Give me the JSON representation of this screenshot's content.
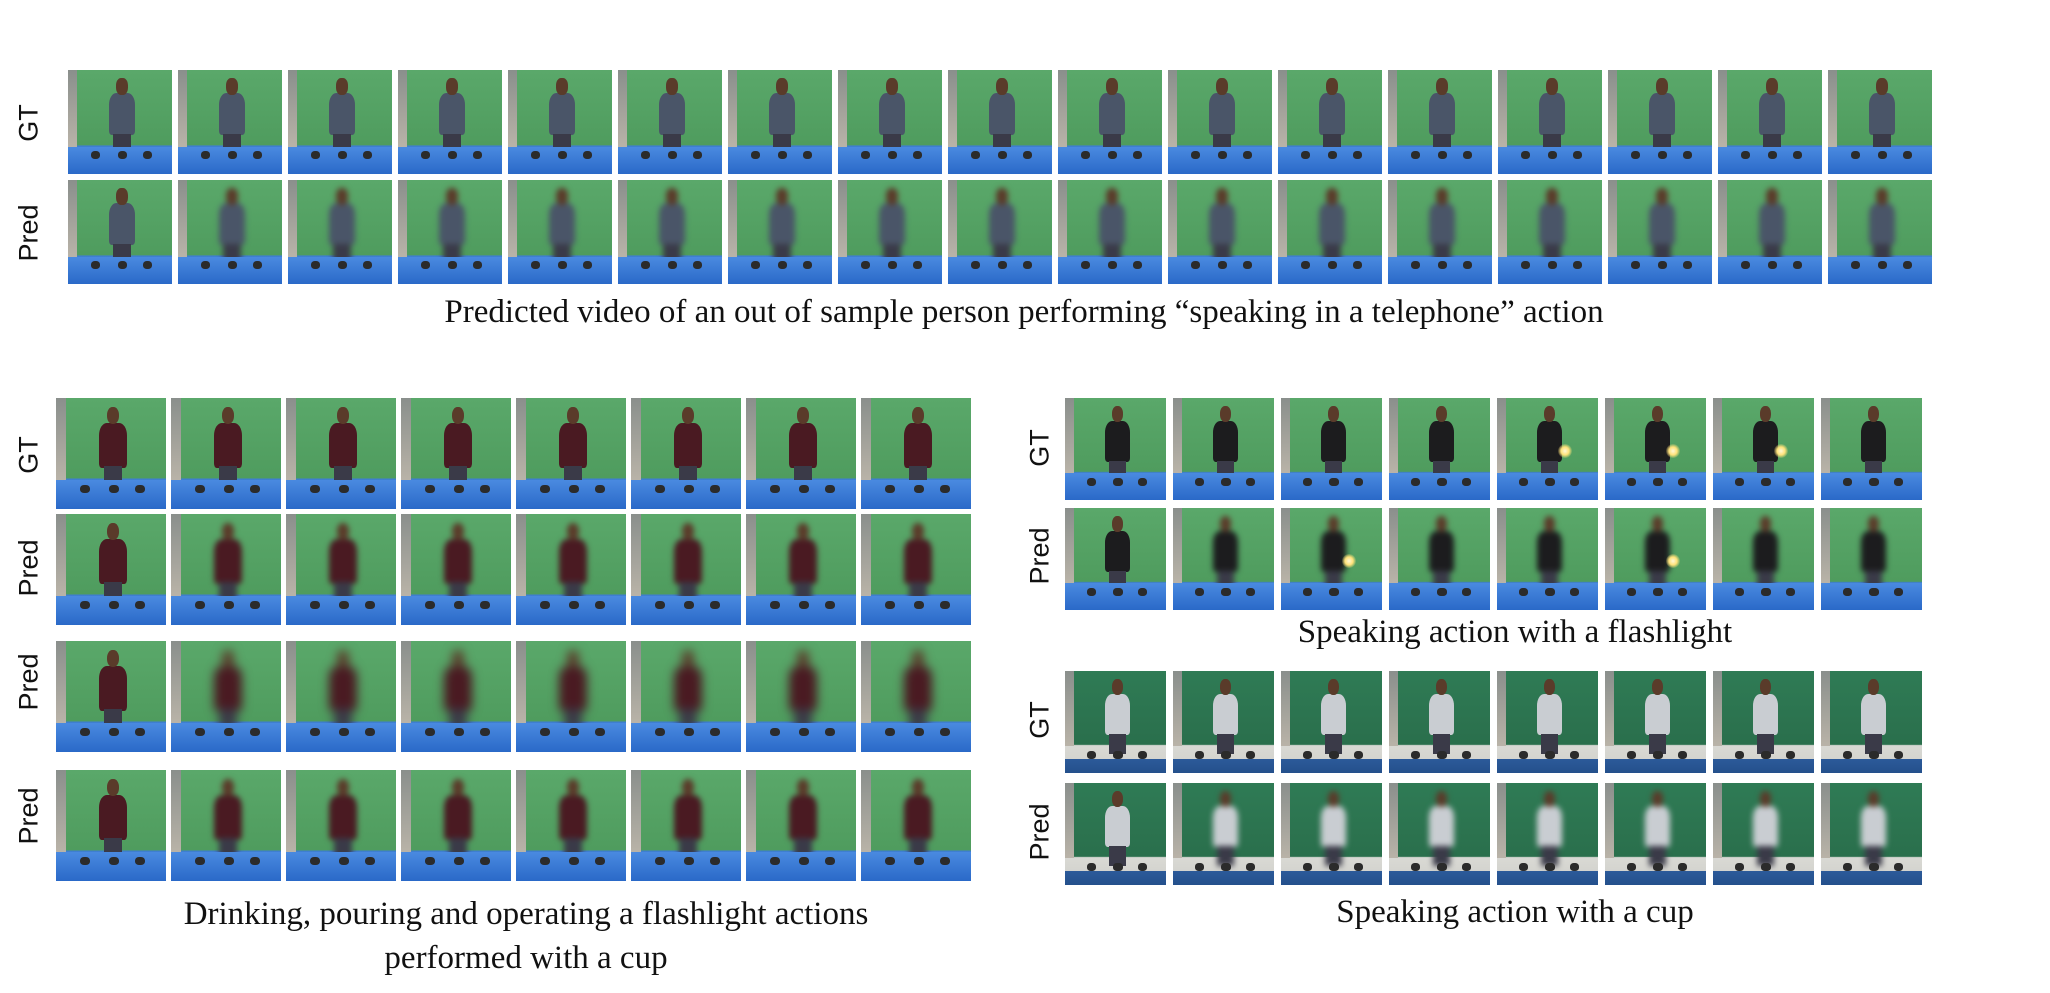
{
  "labels": {
    "gt": "GT",
    "pred": "Pred"
  },
  "panels": [
    {
      "id": "telephone",
      "caption_lines": [
        "Predicted video of an out of sample person performing “speaking in a telephone” action"
      ],
      "row_labels": [
        "GT",
        "Pred"
      ],
      "frames_per_row": 17,
      "scene": "green"
    },
    {
      "id": "cup-actions",
      "caption_lines": [
        "Drinking, pouring and operating a flashlight actions",
        "performed with a cup"
      ],
      "row_labels": [
        "GT",
        "Pred",
        "Pred",
        "Pred"
      ],
      "frames_per_row": 8,
      "scene": "green"
    },
    {
      "id": "flashlight",
      "caption_lines": [
        "Speaking action with a flashlight"
      ],
      "row_labels": [
        "GT",
        "Pred"
      ],
      "frames_per_row": 8,
      "scene": "green"
    },
    {
      "id": "cup-speaking",
      "caption_lines": [
        "Speaking action with a cup"
      ],
      "row_labels": [
        "GT",
        "Pred"
      ],
      "frames_per_row": 8,
      "scene": "dark-green"
    }
  ],
  "colors": {
    "jacket_blue_gray": "#4a5568",
    "sweater_maroon": "#4a1a22",
    "jacket_black": "#1c1c1e",
    "sweater_light_gray": "#c9cdd2",
    "glow": "#ffe27a"
  }
}
